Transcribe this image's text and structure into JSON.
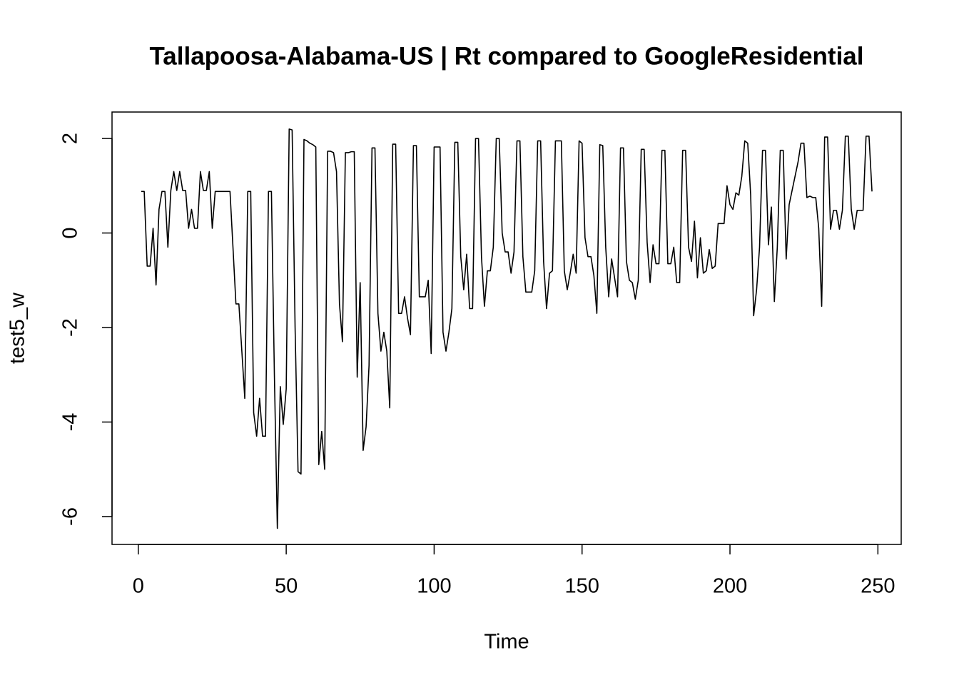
{
  "chart_data": {
    "type": "line",
    "title": "Tallapoosa-Alabama-US | Rt compared to GoogleResidential",
    "xlabel": "Time",
    "ylabel": "test5_w",
    "xlim": [
      -8.88,
      257.88
    ],
    "ylim": [
      -6.59,
      2.56
    ],
    "xticks": [
      0,
      50,
      100,
      150,
      200,
      250
    ],
    "yticks": [
      -6,
      -4,
      -2,
      0,
      2
    ],
    "series": [
      {
        "color": "#000000",
        "x": [
          1,
          2,
          3,
          4,
          5,
          6,
          7,
          8,
          9,
          10,
          11,
          12,
          13,
          14,
          15,
          16,
          17,
          18,
          19,
          20,
          21,
          22,
          23,
          24,
          25,
          26,
          27,
          28,
          29,
          30,
          31,
          32,
          33,
          34,
          35,
          36,
          37,
          38,
          39,
          40,
          41,
          42,
          43,
          44,
          45,
          46,
          47,
          48,
          49,
          50,
          51,
          52,
          53,
          54,
          55,
          56,
          57,
          58,
          59,
          60,
          61,
          62,
          63,
          64,
          65,
          66,
          67,
          68,
          69,
          70,
          71,
          72,
          73,
          74,
          75,
          76,
          77,
          78,
          79,
          80,
          81,
          82,
          83,
          84,
          85,
          86,
          87,
          88,
          89,
          90,
          91,
          92,
          93,
          94,
          95,
          96,
          97,
          98,
          99,
          100,
          101,
          102,
          103,
          104,
          105,
          106,
          107,
          108,
          109,
          110,
          111,
          112,
          113,
          114,
          115,
          116,
          117,
          118,
          119,
          120,
          121,
          122,
          123,
          124,
          125,
          126,
          127,
          128,
          129,
          130,
          131,
          132,
          133,
          134,
          135,
          136,
          137,
          138,
          139,
          140,
          141,
          142,
          143,
          144,
          145,
          146,
          147,
          148,
          149,
          150,
          151,
          152,
          153,
          154,
          155,
          156,
          157,
          158,
          159,
          160,
          161,
          162,
          163,
          164,
          165,
          166,
          167,
          168,
          169,
          170,
          171,
          172,
          173,
          174,
          175,
          176,
          177,
          178,
          179,
          180,
          181,
          182,
          183,
          184,
          185,
          186,
          187,
          188,
          189,
          190,
          191,
          192,
          193,
          194,
          195,
          196,
          197,
          198,
          199,
          200,
          201,
          202,
          203,
          204,
          205,
          206,
          207,
          208,
          209,
          210,
          211,
          212,
          213,
          214,
          215,
          216,
          217,
          218,
          219,
          220,
          221,
          222,
          223,
          224,
          225,
          226,
          227,
          228,
          229,
          230,
          231,
          232,
          233,
          234,
          235,
          236,
          237,
          238,
          239,
          240,
          241,
          242,
          243,
          244,
          245,
          246,
          247,
          248
        ],
        "values": [
          0.88,
          0.88,
          -0.7,
          -0.7,
          0.1,
          -1.1,
          0.5,
          0.88,
          0.88,
          -0.3,
          0.9,
          1.3,
          0.9,
          1.3,
          0.9,
          0.9,
          0.1,
          0.5,
          0.1,
          0.1,
          1.3,
          0.9,
          0.9,
          1.3,
          0.1,
          0.88,
          0.88,
          0.88,
          0.88,
          0.88,
          0.88,
          -0.3,
          -1.5,
          -1.5,
          -2.5,
          -3.5,
          0.88,
          0.88,
          -3.8,
          -4.3,
          -3.5,
          -4.3,
          -4.3,
          0.88,
          0.88,
          -3,
          -6.25,
          -3.25,
          -4.05,
          -3.3,
          2.2,
          2.18,
          -2,
          -5.05,
          -5.1,
          1.98,
          1.95,
          1.9,
          1.87,
          1.82,
          -4.9,
          -4.2,
          -5,
          1.73,
          1.73,
          1.7,
          1.3,
          -1.5,
          -2.3,
          1.7,
          1.7,
          1.72,
          1.72,
          -3.05,
          -1.05,
          -4.6,
          -4.1,
          -2.8,
          1.8,
          1.8,
          -1.7,
          -2.5,
          -2.1,
          -2.5,
          -3.7,
          1.88,
          1.88,
          -1.7,
          -1.7,
          -1.35,
          -1.8,
          -2.15,
          1.85,
          1.85,
          -1.35,
          -1.35,
          -1.35,
          -1,
          -2.55,
          1.82,
          1.82,
          1.82,
          -2.1,
          -2.5,
          -2.1,
          -1.6,
          1.92,
          1.92,
          -0.5,
          -1.2,
          -0.45,
          -1.6,
          -1.6,
          2,
          2,
          -0.5,
          -1.55,
          -0.8,
          -0.8,
          -0.3,
          2,
          2,
          0,
          -0.4,
          -0.4,
          -0.85,
          -0.4,
          1.95,
          1.95,
          -0.5,
          -1.25,
          -1.25,
          -1.25,
          -0.8,
          1.95,
          1.95,
          -0.6,
          -1.6,
          -0.85,
          -0.8,
          1.95,
          1.95,
          1.95,
          -0.8,
          -1.2,
          -0.85,
          -0.45,
          -0.85,
          1.95,
          1.9,
          -0.1,
          -0.5,
          -0.5,
          -0.9,
          -1.7,
          1.87,
          1.85,
          -0.3,
          -1.35,
          -0.55,
          -0.95,
          -1.35,
          1.8,
          1.8,
          -0.6,
          -1,
          -1.05,
          -1.4,
          -1,
          1.77,
          1.77,
          -0.2,
          -1.05,
          -0.25,
          -0.65,
          -0.65,
          1.75,
          1.75,
          -0.65,
          -0.65,
          -0.3,
          -1.05,
          -1.05,
          1.75,
          1.75,
          -0.3,
          -0.6,
          0.25,
          -0.95,
          -0.1,
          -0.85,
          -0.8,
          -0.35,
          -0.75,
          -0.7,
          0.2,
          0.2,
          0.2,
          1,
          0.6,
          0.5,
          0.85,
          0.8,
          1.2,
          1.95,
          1.9,
          0.8,
          -1.75,
          -1.2,
          -0.3,
          1.75,
          1.75,
          -0.25,
          0.55,
          -1.45,
          -0.3,
          1.75,
          1.75,
          -0.55,
          0.6,
          0.9,
          1.2,
          1.5,
          1.9,
          1.9,
          0.75,
          0.78,
          0.75,
          0.75,
          0.1,
          -1.55,
          2.03,
          2.03,
          0.08,
          0.48,
          0.48,
          0.08,
          0.48,
          2.05,
          2.05,
          0.5,
          0.08,
          0.48,
          0.48,
          0.48,
          2.05,
          2.05,
          0.88
        ]
      }
    ]
  }
}
